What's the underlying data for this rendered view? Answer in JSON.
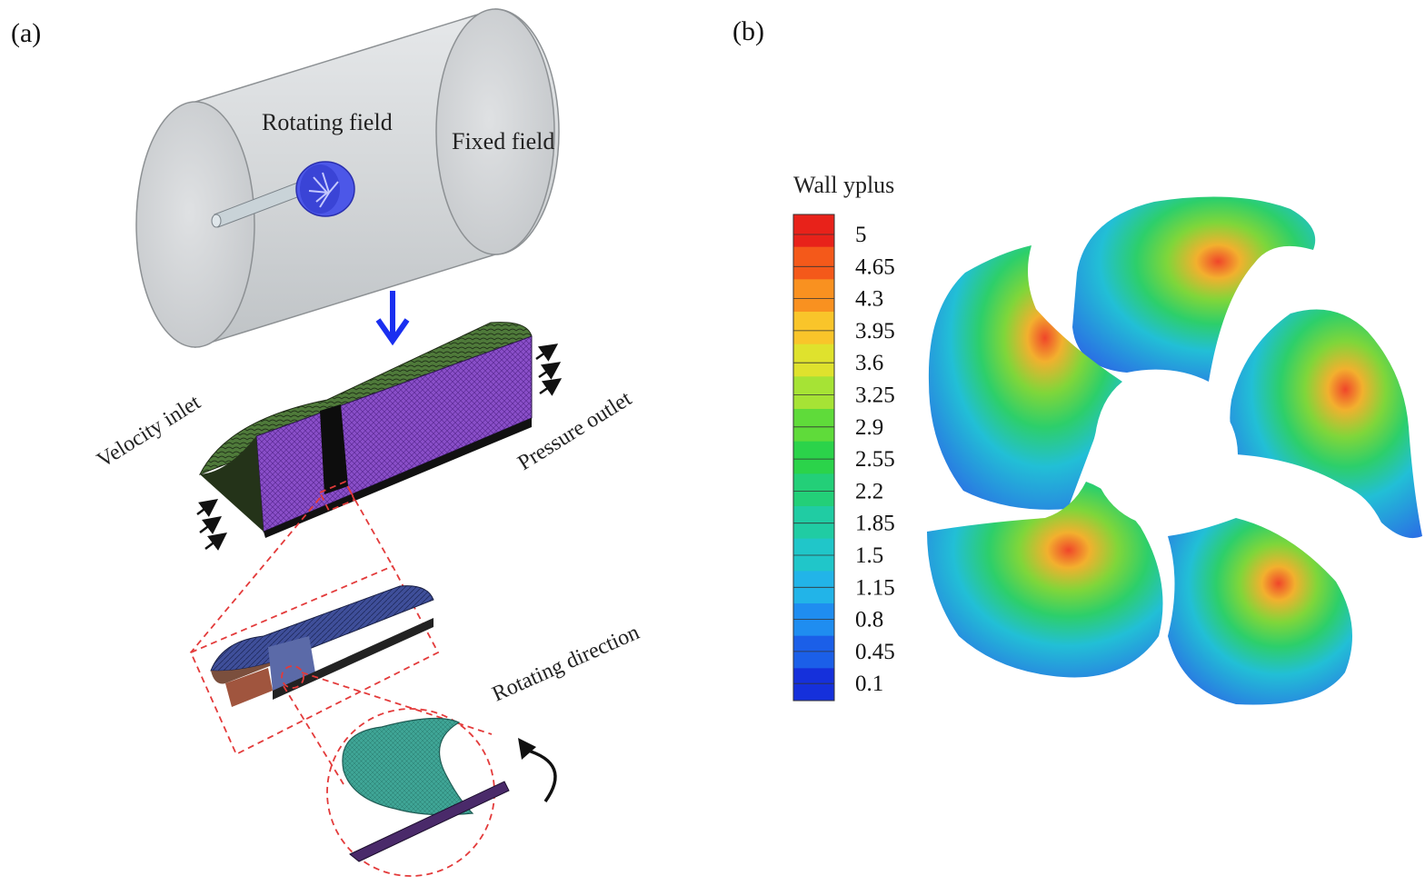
{
  "panels": {
    "a": {
      "label": "(a)"
    },
    "b": {
      "label": "(b)"
    }
  },
  "panel_a": {
    "rotating_field": "Rotating field",
    "fixed_field": "Fixed field",
    "velocity_inlet": "Velocity inlet",
    "pressure_outlet": "Pressure outlet",
    "rotating_direction": "Rotating direction"
  },
  "colorbar": {
    "title": "Wall yplus",
    "ticks": [
      "5",
      "4.65",
      "4.3",
      "3.95",
      "3.6",
      "3.25",
      "2.9",
      "2.55",
      "2.2",
      "1.85",
      "1.5",
      "1.15",
      "0.8",
      "0.45",
      "0.1"
    ],
    "colors": [
      "#e8221a",
      "#f4591a",
      "#f99120",
      "#f9c52a",
      "#dfe22d",
      "#a6e335",
      "#5fdb3a",
      "#2bd34a",
      "#23cf78",
      "#20cca3",
      "#20c6c9",
      "#22b4e8",
      "#1f8df0",
      "#1b5fe8",
      "#1530db"
    ]
  }
}
